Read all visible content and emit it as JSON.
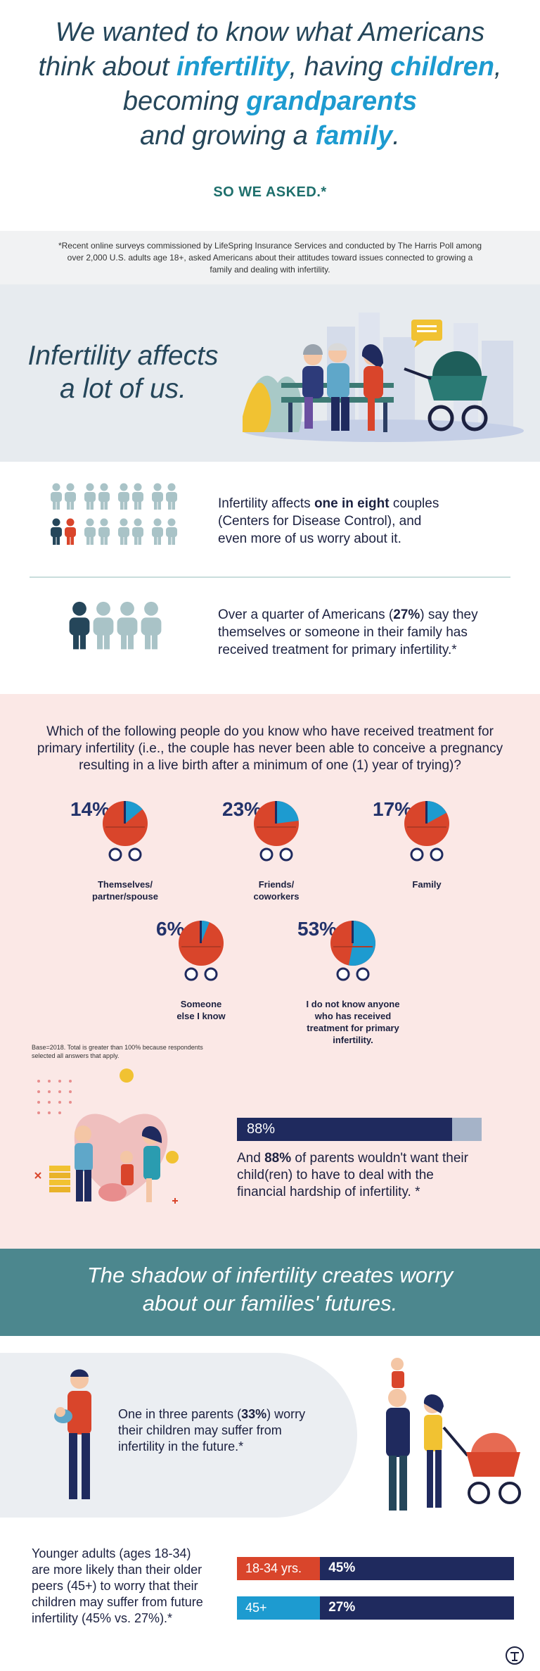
{
  "header": {
    "line1": "We wanted to know what Americans",
    "line2_a": "think about ",
    "line2_b": "infertility",
    "line2_c": ", having ",
    "line2_d": "children",
    "line2_e": ",",
    "line3_a": "becoming ",
    "line3_b": "grandparents",
    "line4_a": "and growing a ",
    "line4_b": "family",
    "line4_c": ".",
    "so_we_asked": "SO WE ASKED.*"
  },
  "footnote": "*Recent online surveys commissioned by LifeSpring Insurance Services and conducted by The Harris Poll among over 2,000 U.S. adults age 18+, asked Americans about their attitudes toward issues connected to growing a family and dealing with infertility.",
  "affects": {
    "title_line1": "Infertility affects",
    "title_line2": "a lot of us."
  },
  "stats": {
    "eight_a": "Infertility affects ",
    "eight_b": "one in eight",
    "eight_c": " couples (Centers for Disease Control), and even more of us worry about it.",
    "quarter_a": "Over a quarter of Americans (",
    "quarter_b": "27%",
    "quarter_c": ") say they themselves or someone in their family has received treatment for primary infertility.*"
  },
  "colors": {
    "navy": "#1f2a5e",
    "teal_blue": "#1d9bd0",
    "red": "#d9452b",
    "grey_person": "#a9c3c7",
    "dark_person": "#25465a"
  },
  "question": "Which of the following people do you know who have received treatment for primary infertility (i.e., the couple has never been able to conceive a pregnancy resulting in a live birth after a minimum of one (1) year of trying)?",
  "carriages": [
    {
      "pct": "14%",
      "value": 14,
      "label_line1": "Themselves/",
      "label_line2": "partner/spouse"
    },
    {
      "pct": "23%",
      "value": 23,
      "label_line1": "Friends/",
      "label_line2": "coworkers"
    },
    {
      "pct": "17%",
      "value": 17,
      "label_line1": "Family",
      "label_line2": ""
    },
    {
      "pct": "6%",
      "value": 6,
      "label_line1": "Someone",
      "label_line2": "else I know"
    },
    {
      "pct": "53%",
      "value": 53,
      "label_line1": "I do not know anyone",
      "label_line2": "who has received",
      "label_line3": "treatment for primary",
      "label_line4": "infertility."
    }
  ],
  "base_note": "Base=2018. Total is greater than 100% because respondents selected all answers that apply.",
  "parents88": {
    "bar_label": "88%",
    "value": 88,
    "text_a": "And ",
    "text_b": "88%",
    "text_c": " of parents wouldn't want their child(ren) to have to deal with the financial hardship of infertility. *"
  },
  "shadow": {
    "line1": "The shadow of infertility creates worry",
    "line2": "about our families' futures."
  },
  "three": {
    "text_a": "One in three parents (",
    "text_b": "33%",
    "text_c": ") worry their children may suffer from infertility in the future.*"
  },
  "younger": {
    "text": "Younger adults (ages 18-34) are more likely than their older peers (45+) to worry that their children may suffer from future infertility (45% vs. 27%).*",
    "bars": [
      {
        "group": "18-34 yrs.",
        "pct": "45%",
        "value": 45
      },
      {
        "group": "45+",
        "pct": "27%",
        "value": 27
      }
    ]
  }
}
